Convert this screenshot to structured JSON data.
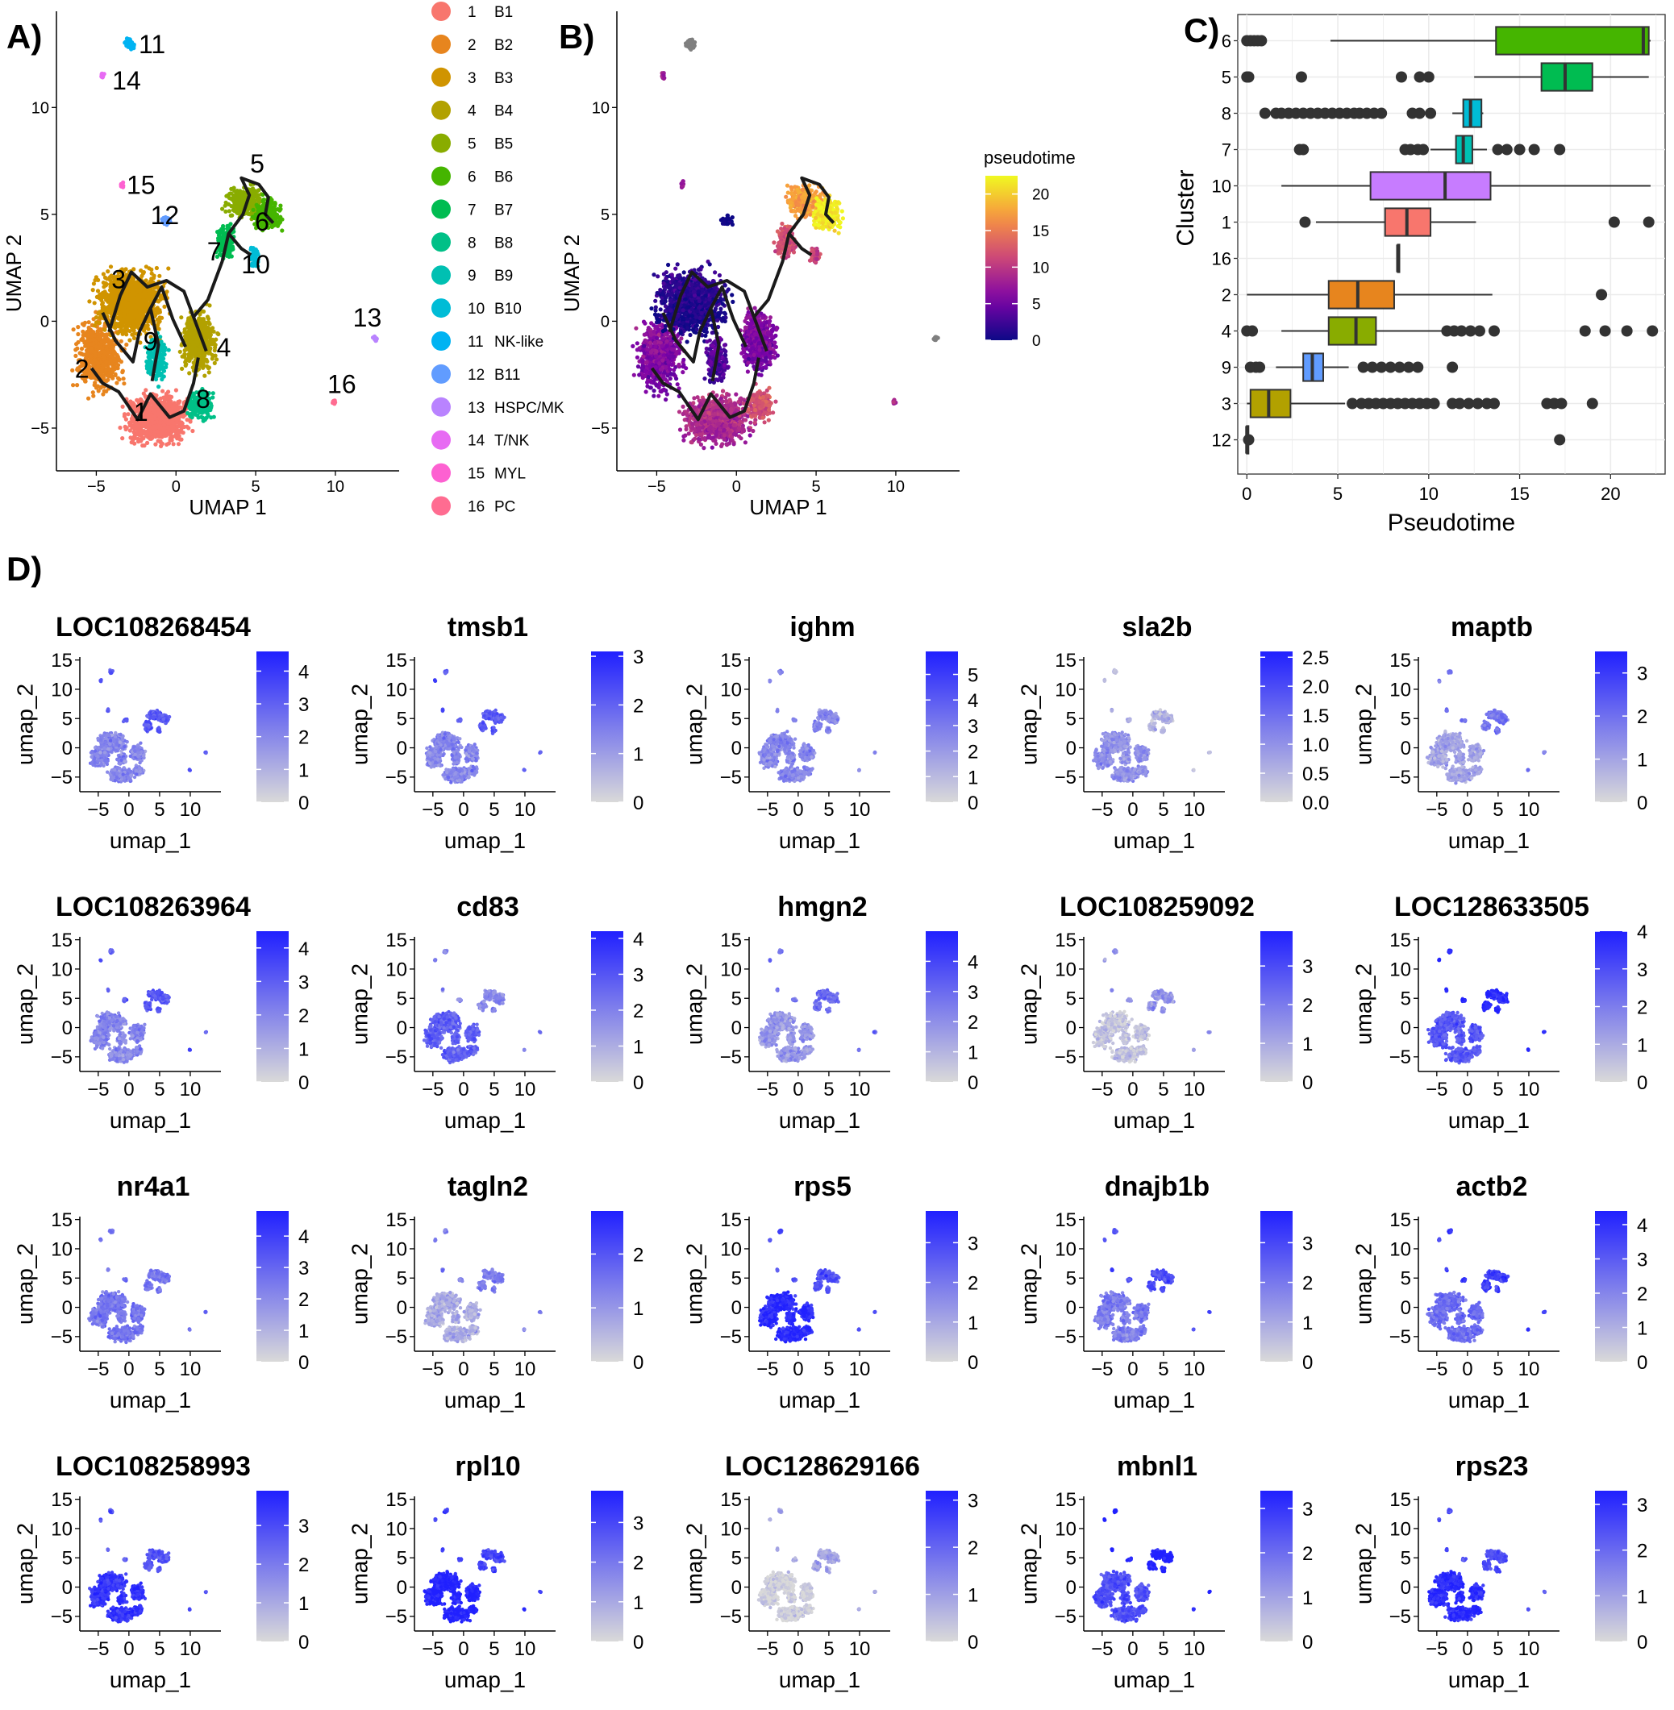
{
  "chart_data": [
    {
      "panel": "A)",
      "type": "scatter",
      "title": "",
      "xlabel": "UMAP 1",
      "ylabel": "UMAP 2",
      "xlim": [
        -7.5,
        14
      ],
      "ylim": [
        -7,
        14.5
      ],
      "xticks": [
        "-5",
        "0",
        "5",
        "10"
      ],
      "yticks": [
        "-5",
        "0",
        "5",
        "10"
      ],
      "clusters": [
        {
          "id": "1",
          "name": "B1",
          "color": "#F8766D",
          "x": -1.2,
          "y": -4.6,
          "rx": 2.6,
          "ry": 1.5,
          "n": 900
        },
        {
          "id": "2",
          "name": "B2",
          "color": "#E7851E",
          "x": -4.8,
          "y": -1.6,
          "rx": 1.9,
          "ry": 2.2,
          "n": 600
        },
        {
          "id": "3",
          "name": "B3",
          "color": "#D09400",
          "x": -2.8,
          "y": 0.9,
          "rx": 2.8,
          "ry": 2.0,
          "n": 1100
        },
        {
          "id": "4",
          "name": "B4",
          "color": "#B2A100",
          "x": 1.4,
          "y": -0.9,
          "rx": 1.4,
          "ry": 1.8,
          "n": 500
        },
        {
          "id": "5",
          "name": "B5",
          "color": "#89AC00",
          "x": 4.3,
          "y": 5.6,
          "rx": 1.5,
          "ry": 1.0,
          "n": 300
        },
        {
          "id": "6",
          "name": "B6",
          "color": "#45B500",
          "x": 5.7,
          "y": 5.0,
          "rx": 1.1,
          "ry": 1.0,
          "n": 300
        },
        {
          "id": "7",
          "name": "B7",
          "color": "#00BC51",
          "x": 3.1,
          "y": 3.7,
          "rx": 0.8,
          "ry": 1.0,
          "n": 150
        },
        {
          "id": "8",
          "name": "B8",
          "color": "#00C087",
          "x": 1.5,
          "y": -3.9,
          "rx": 1.0,
          "ry": 1.0,
          "n": 200
        },
        {
          "id": "9",
          "name": "B9",
          "color": "#00C0B2",
          "x": -1.2,
          "y": -1.8,
          "rx": 0.9,
          "ry": 1.4,
          "n": 200
        },
        {
          "id": "10",
          "name": "B10",
          "color": "#00BCD6",
          "x": 4.9,
          "y": 3.0,
          "rx": 0.4,
          "ry": 0.6,
          "n": 60
        },
        {
          "id": "11",
          "name": "NK-like",
          "color": "#00B3F2",
          "x": -2.9,
          "y": 13.0,
          "rx": 0.35,
          "ry": 0.35,
          "n": 60
        },
        {
          "id": "12",
          "name": "B11",
          "color": "#619CFF",
          "x": -0.6,
          "y": 4.7,
          "rx": 0.45,
          "ry": 0.3,
          "n": 40
        },
        {
          "id": "13",
          "name": "HSPC/MK",
          "color": "#B983FF",
          "x": 12.5,
          "y": -0.8,
          "rx": 0.2,
          "ry": 0.15,
          "n": 12
        },
        {
          "id": "14",
          "name": "T/NK",
          "color": "#E76BF3",
          "x": -4.6,
          "y": 11.5,
          "rx": 0.12,
          "ry": 0.25,
          "n": 14
        },
        {
          "id": "15",
          "name": "MYL",
          "color": "#FD61D1",
          "x": -3.4,
          "y": 6.4,
          "rx": 0.12,
          "ry": 0.3,
          "n": 14
        },
        {
          "id": "16",
          "name": "PC",
          "color": "#FF6C91",
          "x": 9.9,
          "y": -3.8,
          "rx": 0.12,
          "ry": 0.15,
          "n": 10
        }
      ],
      "cluster_labels": [
        {
          "text": "11",
          "x": -1.5,
          "y": 13.0
        },
        {
          "text": "14",
          "x": -3.1,
          "y": 11.3
        },
        {
          "text": "15",
          "x": -2.2,
          "y": 6.4
        },
        {
          "text": "12",
          "x": -0.7,
          "y": 5.0
        },
        {
          "text": "5",
          "x": 5.1,
          "y": 7.4
        },
        {
          "text": "6",
          "x": 5.4,
          "y": 4.7
        },
        {
          "text": "7",
          "x": 2.4,
          "y": 3.3
        },
        {
          "text": "10",
          "x": 5.0,
          "y": 2.7
        },
        {
          "text": "3",
          "x": -3.6,
          "y": 2.0
        },
        {
          "text": "9",
          "x": -1.6,
          "y": -0.9
        },
        {
          "text": "4",
          "x": 3.0,
          "y": -1.2
        },
        {
          "text": "2",
          "x": -5.9,
          "y": -2.2
        },
        {
          "text": "1",
          "x": -2.2,
          "y": -4.2
        },
        {
          "text": "8",
          "x": 1.7,
          "y": -3.6
        },
        {
          "text": "13",
          "x": 12.0,
          "y": 0.2
        },
        {
          "text": "16",
          "x": 10.4,
          "y": -2.9
        }
      ],
      "trajectory": [
        [
          [
            -4.2,
            -0.5
          ],
          [
            -3.5,
            1.2
          ],
          [
            -2.8,
            2.3
          ],
          [
            -1.8,
            1.6
          ],
          [
            -0.6,
            1.9
          ],
          [
            0.5,
            1.4
          ],
          [
            1.1,
            0.2
          ],
          [
            1.9,
            -1.4
          ]
        ],
        [
          [
            -5.3,
            -2.2
          ],
          [
            -4.6,
            -2.9
          ],
          [
            -3.6,
            -3.3
          ],
          [
            -2.4,
            -4.6
          ],
          [
            -1.6,
            -3.4
          ],
          [
            -0.4,
            -4.5
          ],
          [
            0.5,
            -4.2
          ],
          [
            1.1,
            -2.9
          ],
          [
            1.4,
            -1.7
          ]
        ],
        [
          [
            -1.5,
            -2.8
          ],
          [
            -1.1,
            -1.1
          ],
          [
            -1.6,
            0.6
          ],
          [
            -0.9,
            1.6
          ],
          [
            -0.2,
            0.1
          ],
          [
            0.6,
            -1.2
          ]
        ],
        [
          [
            1.1,
            0.2
          ],
          [
            2.0,
            1.0
          ],
          [
            2.9,
            2.8
          ],
          [
            3.3,
            4.1
          ],
          [
            4.2,
            5.0
          ],
          [
            4.6,
            5.9
          ],
          [
            4.1,
            6.7
          ],
          [
            5.2,
            6.4
          ],
          [
            5.8,
            5.8
          ],
          [
            5.6,
            5.0
          ],
          [
            6.1,
            4.6
          ]
        ],
        [
          [
            3.3,
            4.1
          ],
          [
            4.1,
            3.4
          ],
          [
            4.7,
            3.1
          ]
        ],
        [
          [
            -4.6,
            0.4
          ],
          [
            -3.8,
            -0.9
          ],
          [
            -2.7,
            -1.9
          ],
          [
            -2.3,
            -0.5
          ],
          [
            -1.6,
            0.6
          ]
        ]
      ]
    },
    {
      "panel": "B)",
      "type": "scatter",
      "xlabel": "UMAP 1",
      "ylabel": "UMAP 2",
      "xlim": [
        -7.5,
        14
      ],
      "ylim": [
        -7,
        14.5
      ],
      "xticks": [
        "-5",
        "0",
        "5",
        "10"
      ],
      "yticks": [
        "-5",
        "0",
        "5",
        "10"
      ],
      "color_legend": {
        "title": "pseudotime",
        "ticks": [
          "20",
          "15",
          "10",
          "5",
          "0"
        ],
        "range": [
          0,
          22.5
        ]
      },
      "gray_clusters": [
        "11",
        "13"
      ]
    },
    {
      "panel": "C)",
      "type": "boxplot",
      "xlabel": "Pseudotime",
      "ylabel": "Cluster",
      "xlim": [
        -0.5,
        23
      ],
      "xticks": [
        "0",
        "5",
        "10",
        "15",
        "20"
      ],
      "groups": [
        {
          "cluster": "6",
          "color": "#45B500",
          "whisker_lo": 4.6,
          "q1": 13.7,
          "median": 21.8,
          "q3": 22.1,
          "whisker_hi": 22.2,
          "outliers": [
            0.0,
            0.2,
            0.4,
            0.6,
            0.8
          ]
        },
        {
          "cluster": "5",
          "color": "#00BC51",
          "whisker_lo": 12.5,
          "q1": 16.2,
          "median": 17.5,
          "q3": 19.0,
          "whisker_hi": 22.1,
          "outliers": [
            0.0,
            0.1,
            3.0,
            8.5,
            9.5,
            10.0
          ]
        },
        {
          "cluster": "8",
          "color": "#00BCD6",
          "whisker_lo": 11.3,
          "q1": 11.9,
          "median": 12.3,
          "q3": 12.9,
          "whisker_hi": 13.0,
          "outliers": [
            1.0,
            1.6,
            1.9,
            2.3,
            2.7,
            3.1,
            3.5,
            3.9,
            4.3,
            4.7,
            5.1,
            5.5,
            5.9,
            6.2,
            6.6,
            7.0,
            7.4,
            9.1,
            9.5,
            10.1
          ]
        },
        {
          "cluster": "7",
          "color": "#00C0B2",
          "whisker_lo": 10.1,
          "q1": 11.5,
          "median": 11.9,
          "q3": 12.4,
          "whisker_hi": 13.2,
          "outliers": [
            2.9,
            3.1,
            8.7,
            9.0,
            9.4,
            9.7,
            13.8,
            14.3,
            15.0,
            15.8,
            17.2
          ]
        },
        {
          "cluster": "10",
          "color": "#C77CFF",
          "whisker_lo": 1.9,
          "q1": 6.8,
          "median": 10.9,
          "q3": 13.4,
          "whisker_hi": 22.2,
          "outliers": []
        },
        {
          "cluster": "1",
          "color": "#F8766D",
          "whisker_lo": 3.8,
          "q1": 7.6,
          "median": 8.8,
          "q3": 10.1,
          "whisker_hi": 12.6,
          "outliers": [
            3.2,
            20.2,
            22.1
          ]
        },
        {
          "cluster": "16",
          "color": "#FF6C91",
          "whisker_lo": 8.3,
          "q1": 8.3,
          "median": 8.3,
          "q3": 8.3,
          "whisker_hi": 8.3,
          "outliers": []
        },
        {
          "cluster": "2",
          "color": "#E7851E",
          "whisker_lo": 0.0,
          "q1": 4.5,
          "median": 6.1,
          "q3": 8.1,
          "whisker_hi": 13.5,
          "outliers": [
            19.5
          ]
        },
        {
          "cluster": "4",
          "color": "#89AC00",
          "whisker_lo": 1.9,
          "q1": 4.5,
          "median": 6.0,
          "q3": 7.1,
          "whisker_hi": 10.8,
          "outliers": [
            0.0,
            0.3,
            11.0,
            11.4,
            11.8,
            12.3,
            12.8,
            13.6,
            18.6,
            19.7,
            20.9,
            22.3
          ]
        },
        {
          "cluster": "9",
          "color": "#619CFF",
          "whisker_lo": 1.6,
          "q1": 3.1,
          "median": 3.6,
          "q3": 4.2,
          "whisker_hi": 5.6,
          "outliers": [
            0.2,
            0.5,
            0.7,
            6.4,
            6.9,
            7.4,
            7.9,
            8.4,
            8.9,
            9.4,
            11.3
          ]
        },
        {
          "cluster": "3",
          "color": "#B2A100",
          "whisker_lo": 0.0,
          "q1": 0.2,
          "median": 1.2,
          "q3": 2.4,
          "whisker_hi": 5.4,
          "outliers": [
            5.8,
            6.3,
            6.7,
            7.1,
            7.5,
            7.9,
            8.3,
            8.7,
            9.1,
            9.5,
            9.9,
            10.3,
            11.3,
            11.7,
            12.2,
            12.7,
            13.2,
            13.6,
            16.5,
            16.9,
            17.3,
            19.0
          ]
        },
        {
          "cluster": "12",
          "color": "#619CFF",
          "whisker_lo": 0.0,
          "q1": 0.0,
          "median": 0.0,
          "q3": 0.0,
          "whisker_hi": 0.0,
          "outliers": [
            0.1,
            17.2
          ]
        }
      ]
    },
    {
      "panel": "D)",
      "type": "scatter",
      "xlabel": "umap_1",
      "ylabel": "umap_2",
      "xlim": [
        -8,
        15
      ],
      "ylim": [
        -7.5,
        15.5
      ],
      "xticks": [
        "-5",
        "0",
        "5",
        "10"
      ],
      "yticks": [
        "-5",
        "0",
        "5",
        "10",
        "15"
      ],
      "color_low": "#d9d9d9",
      "color_high": "#2020ff",
      "features": [
        {
          "gene": "LOC108268454",
          "max": 4.6,
          "legend_ticks": [
            "4",
            "3",
            "2",
            "1",
            "0"
          ],
          "level": 0.45,
          "hot": "island"
        },
        {
          "gene": "tmsb1",
          "max": 3.1,
          "legend_ticks": [
            "3",
            "2",
            "1",
            "0"
          ],
          "level": 0.45,
          "hot": "island"
        },
        {
          "gene": "ighm",
          "max": 5.9,
          "legend_ticks": [
            "5",
            "4",
            "3",
            "2",
            "1",
            "0"
          ],
          "level": 0.45,
          "hot": "none"
        },
        {
          "gene": "sla2b",
          "max": 2.6,
          "legend_ticks": [
            "2.5",
            "2.0",
            "1.5",
            "1.0",
            "0.5",
            "0.0"
          ],
          "level": 0.2,
          "hot": "main"
        },
        {
          "gene": "maptb",
          "max": 3.5,
          "legend_ticks": [
            "3",
            "2",
            "1",
            "0"
          ],
          "level": 0.3,
          "hot": "island"
        },
        {
          "gene": "LOC108263964",
          "max": 4.5,
          "legend_ticks": [
            "4",
            "3",
            "2",
            "1",
            "0"
          ],
          "level": 0.45,
          "hot": "island"
        },
        {
          "gene": "cd83",
          "max": 4.2,
          "legend_ticks": [
            "4",
            "3",
            "2",
            "1",
            "0"
          ],
          "level": 0.45,
          "hot": "main"
        },
        {
          "gene": "hmgn2",
          "max": 5.0,
          "legend_ticks": [
            "4",
            "3",
            "2",
            "1",
            "0"
          ],
          "level": 0.35,
          "hot": "island"
        },
        {
          "gene": "LOC108259092",
          "max": 3.9,
          "legend_ticks": [
            "3",
            "2",
            "1",
            "0"
          ],
          "level": 0.12,
          "hot": "island"
        },
        {
          "gene": "LOC128633505",
          "max": 4.0,
          "legend_ticks": [
            "4",
            "3",
            "2",
            "1",
            "0"
          ],
          "level": 0.7,
          "hot": "island"
        },
        {
          "gene": "nr4a1",
          "max": 4.8,
          "legend_ticks": [
            "4",
            "3",
            "2",
            "1",
            "0"
          ],
          "level": 0.55,
          "hot": "none"
        },
        {
          "gene": "tagln2",
          "max": 2.8,
          "legend_ticks": [
            "2",
            "1",
            "0"
          ],
          "level": 0.25,
          "hot": "island"
        },
        {
          "gene": "rps5",
          "max": 3.8,
          "legend_ticks": [
            "3",
            "2",
            "1",
            "0"
          ],
          "level": 0.75,
          "hot": "main"
        },
        {
          "gene": "dnajb1b",
          "max": 3.8,
          "legend_ticks": [
            "3",
            "2",
            "1",
            "0"
          ],
          "level": 0.5,
          "hot": "island"
        },
        {
          "gene": "actb2",
          "max": 4.4,
          "legend_ticks": [
            "4",
            "3",
            "2",
            "1",
            "0"
          ],
          "level": 0.6,
          "hot": "island"
        },
        {
          "gene": "LOC108258993",
          "max": 3.9,
          "legend_ticks": [
            "3",
            "2",
            "1",
            "0"
          ],
          "level": 0.7,
          "hot": "main"
        },
        {
          "gene": "rpl10",
          "max": 3.8,
          "legend_ticks": [
            "3",
            "2",
            "1",
            "0"
          ],
          "level": 0.8,
          "hot": "main"
        },
        {
          "gene": "LOC128629166",
          "max": 3.2,
          "legend_ticks": [
            "3",
            "2",
            "1",
            "0"
          ],
          "level": 0.05,
          "hot": "island"
        },
        {
          "gene": "mbnl1",
          "max": 3.4,
          "legend_ticks": [
            "3",
            "2",
            "1",
            "0"
          ],
          "level": 0.75,
          "hot": "island"
        },
        {
          "gene": "rps23",
          "max": 3.3,
          "legend_ticks": [
            "3",
            "2",
            "1",
            "0"
          ],
          "level": 0.75,
          "hot": "main"
        }
      ]
    }
  ]
}
